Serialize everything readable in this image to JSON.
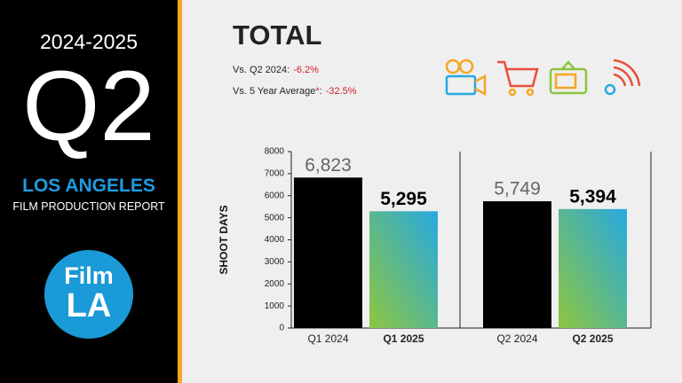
{
  "sidebar": {
    "years": "2024-2025",
    "quarter": "Q2",
    "city": "LOS ANGELES",
    "report": "FILM PRODUCTION REPORT",
    "logo": [
      "Film",
      "LA"
    ]
  },
  "header": {
    "title": "TOTAL",
    "comparisons": [
      {
        "label": "Vs. Q2 2024:",
        "value": "-6.2%"
      },
      {
        "label": "Vs. 5 Year Average",
        "marker": "*",
        "suffix": ":",
        "value": "-32.5%"
      }
    ]
  },
  "chart_data": {
    "type": "bar",
    "ylabel": "SHOOT DAYS",
    "categories": [
      "Q1 2024",
      "Q1 2025",
      "Q2 2024",
      "Q2 2025"
    ],
    "values": [
      6823,
      5295,
      5749,
      5394
    ],
    "value_labels": [
      "6,823",
      "5,295",
      "5,749",
      "5,394"
    ],
    "colors": [
      "#000000",
      [
        "#8dc63f",
        "#27a9e1"
      ],
      "#000000",
      [
        "#8dc63f",
        "#27a9e1"
      ]
    ],
    "emphasis": [
      false,
      true,
      false,
      true
    ],
    "ylim": [
      0,
      8000
    ],
    "yticks": [
      0,
      1000,
      2000,
      3000,
      4000,
      5000,
      6000,
      7000,
      8000
    ]
  }
}
